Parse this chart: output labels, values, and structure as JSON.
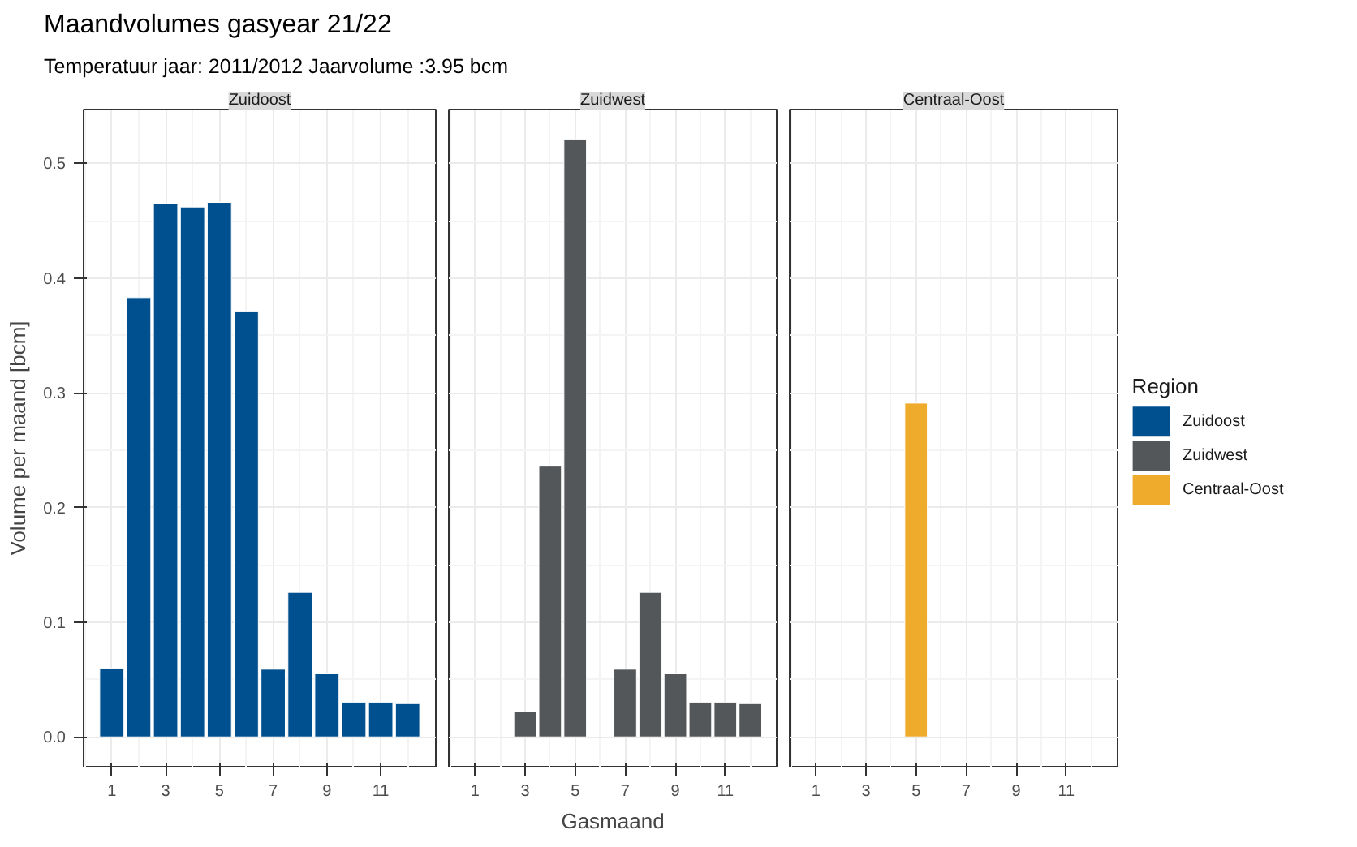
{
  "chart_data": [
    {
      "type": "bar",
      "title": "Maandvolumes gasyear 21/22",
      "subtitle": "Temperatuur jaar: 2011/2012 Jaarvolume :3.95 bcm",
      "ylabel": "Volume per maand [bcm]",
      "x": [
        1,
        2,
        3,
        4,
        5,
        6,
        7,
        8,
        9,
        10,
        11,
        12
      ],
      "series": [
        {
          "name": "Zuidoost",
          "color": "#00508f",
          "values": [
            0.06,
            0.383,
            0.465,
            0.462,
            0.466,
            0.371,
            0.059,
            0.126,
            0.055,
            0.03,
            0.03,
            0.029
          ]
        }
      ],
      "xlim": [
        -0.05,
        13.05
      ],
      "ylim": [
        -0.026,
        0.547
      ],
      "xticks": [
        1,
        3,
        5,
        7,
        9,
        11
      ],
      "yticks": [
        {
          "value": 0,
          "label": "0.0"
        },
        0.1,
        0.2,
        0.3,
        0.4,
        0.5
      ],
      "grid": true
    },
    {
      "type": "bar",
      "xlabel": "Gasmaand",
      "series": [
        {
          "name": "Zuidwest",
          "color": "#53575a",
          "x": [
            3,
            4,
            5,
            7,
            8,
            9,
            10,
            11,
            12
          ],
          "values": [
            0.022,
            0.236,
            0.521,
            0.059,
            0.126,
            0.055,
            0.03,
            0.03,
            0.029
          ]
        }
      ],
      "xlim": [
        -0.05,
        13.05
      ],
      "ylim": [
        -0.026,
        0.547
      ],
      "xticks": [
        1,
        3,
        5,
        7,
        9,
        11
      ],
      "grid": true,
      "tick_labels": "x"
    },
    {
      "type": "bar",
      "legend": "right",
      "legend_title": "Region",
      "series": [
        {
          "name": "Centraal-Oost",
          "color": "#eeab2c",
          "x": [
            5
          ],
          "values": [
            0.291
          ]
        }
      ],
      "xlim": [
        -0.05,
        13.05
      ],
      "ylim": [
        -0.026,
        0.547
      ],
      "xticks": [
        1,
        3,
        5,
        7,
        9,
        11
      ],
      "grid": true,
      "tick_labels": "x"
    }
  ]
}
